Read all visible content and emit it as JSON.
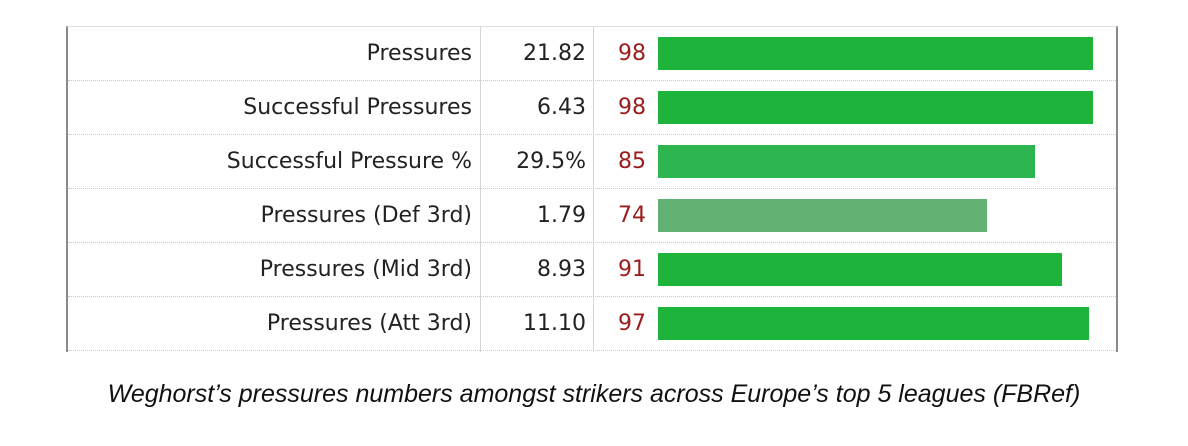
{
  "chart_data": {
    "type": "bar",
    "orientation": "horizontal",
    "columns": [
      "label",
      "value",
      "percentile"
    ],
    "rows": [
      {
        "label": "Pressures",
        "value": "21.82",
        "percentile": 98
      },
      {
        "label": "Successful Pressures",
        "value": "6.43",
        "percentile": 98
      },
      {
        "label": "Successful Pressure %",
        "value": "29.5%",
        "percentile": 85
      },
      {
        "label": "Pressures (Def 3rd)",
        "value": "1.79",
        "percentile": 74
      },
      {
        "label": "Pressures (Mid 3rd)",
        "value": "8.93",
        "percentile": 91
      },
      {
        "label": "Pressures (Att 3rd)",
        "value": "11.10",
        "percentile": 97
      }
    ],
    "categories": [
      "Pressures",
      "Successful Pressures",
      "Successful Pressure %",
      "Pressures (Def 3rd)",
      "Pressures (Mid 3rd)",
      "Pressures (Att 3rd)"
    ],
    "values": [
      98,
      98,
      85,
      74,
      91,
      97
    ],
    "xlim": [
      0,
      100
    ],
    "grid": false,
    "bar_colors": {
      "high": "#1eb33a",
      "mid": "#2db550",
      "low": "#62b274"
    },
    "percentile_text_color": "#9b1c1c"
  },
  "caption": "Weghorst’s pressures numbers amongst strikers across Europe’s top 5 leagues (FBRef)"
}
